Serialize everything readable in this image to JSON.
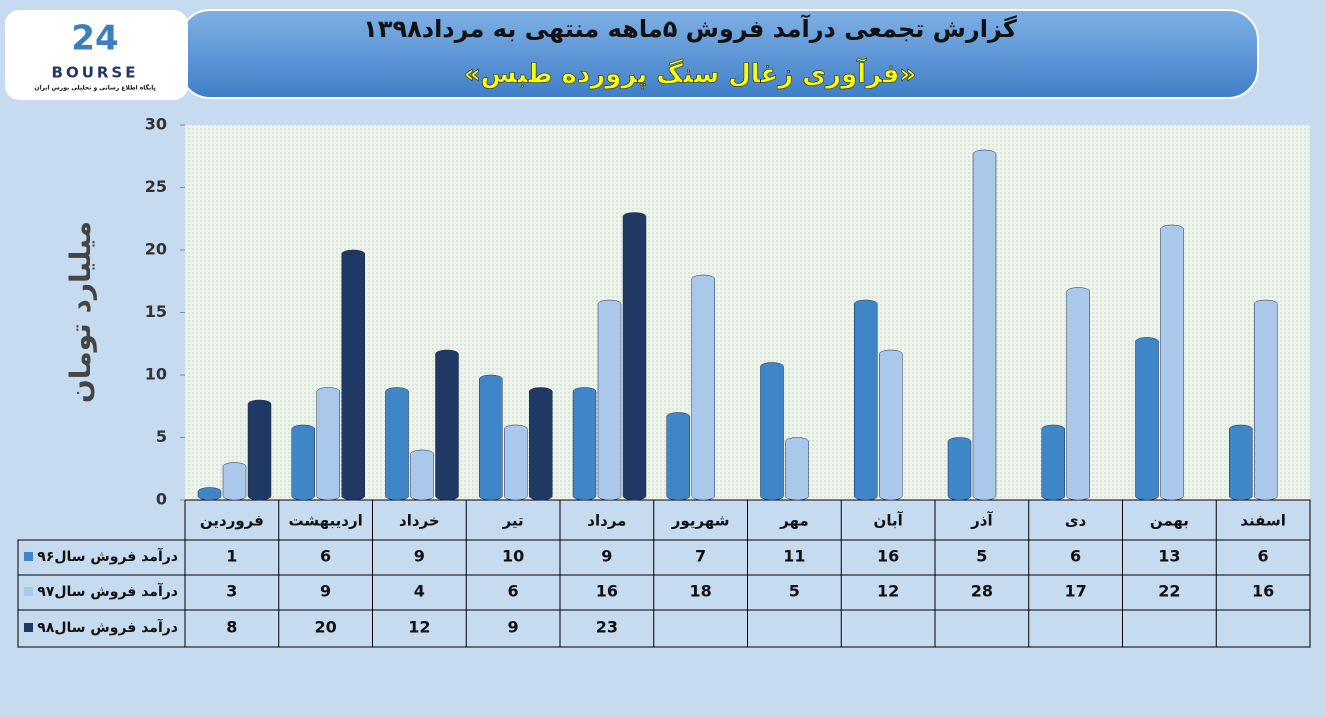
{
  "logo": {
    "mark": "24",
    "name": "BOURSE",
    "tagline": "پایگاه اطلاع رسانی و تحلیلی بورس ایران"
  },
  "chart_data": {
    "type": "bar",
    "title": "گزارش تجمعی درآمد فروش ۵ماهه منتهی به مرداد۱۳۹۸",
    "subtitle": "«فرآوری زغال سنگ پرورده طبس»",
    "y_label": "میلیارد تومان",
    "categories": [
      "فروردین",
      "اردیبهشت",
      "خرداد",
      "تیر",
      "مرداد",
      "شهریور",
      "مهر",
      "آبان",
      "آذر",
      "دی",
      "بهمن",
      "اسفند"
    ],
    "series": [
      {
        "name": "درآمد فروش سال۹۶",
        "color": "#3f86c8",
        "values": [
          1,
          6,
          9,
          10,
          9,
          7,
          11,
          16,
          5,
          6,
          13,
          6
        ]
      },
      {
        "name": "درآمد فروش سال۹۷",
        "color": "#a9c8ea",
        "values": [
          3,
          9,
          4,
          6,
          16,
          18,
          5,
          12,
          28,
          17,
          22,
          16
        ]
      },
      {
        "name": "درآمد فروش سال۹۸",
        "color": "#1f3864",
        "values": [
          8,
          20,
          12,
          9,
          23,
          null,
          null,
          null,
          null,
          null,
          null,
          null
        ]
      }
    ],
    "ylim": [
      0,
      30
    ],
    "yticks": [
      0,
      5,
      10,
      15,
      20,
      25,
      30
    ]
  }
}
